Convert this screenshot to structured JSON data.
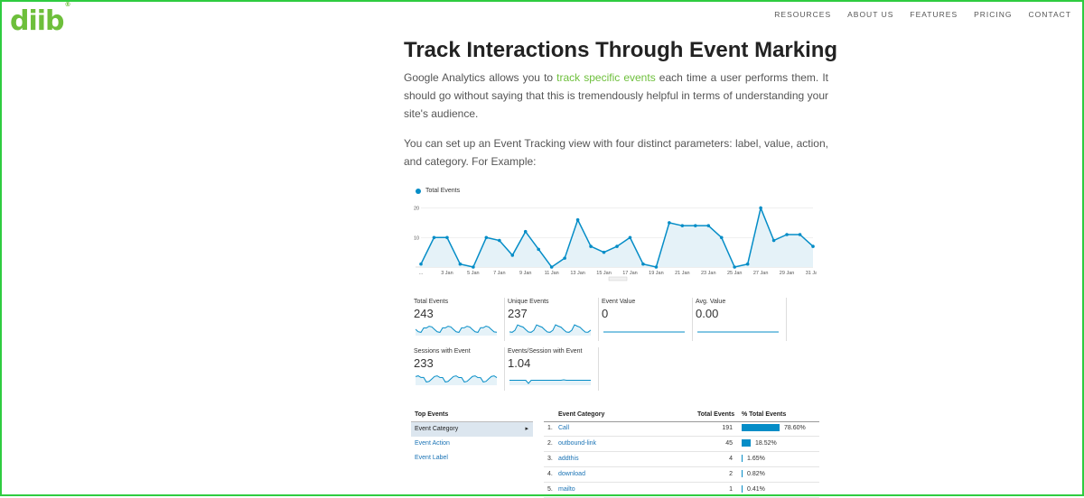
{
  "logo": {
    "text": "diib",
    "mark": "®"
  },
  "nav": {
    "items": [
      "RESOURCES",
      "ABOUT US",
      "FEATURES",
      "PRICING",
      "CONTACT"
    ]
  },
  "article": {
    "heading": "Track Interactions Through Event Marking",
    "p1_before": "Google Analytics allows you to ",
    "p1_link": "track specific events",
    "p1_after": " each time a user performs them. It should go without saying that this is tremendously helpful in terms of understanding your site's audience.",
    "p2": "You can set up an Event Tracking view with four distinct parameters: label, value, action, and category. For Example:"
  },
  "screenshot": {
    "legend": "Total Events",
    "chart_data": {
      "type": "area",
      "title": "Total Events",
      "series": [
        {
          "name": "Total Events",
          "values": [
            1,
            10,
            10,
            1,
            0,
            10,
            9,
            4,
            12,
            6,
            0,
            3,
            16,
            7,
            5,
            7,
            10,
            1,
            0,
            15,
            14,
            14,
            14,
            10,
            0,
            1,
            20,
            9,
            11,
            11,
            7
          ]
        }
      ],
      "y_ticks": [
        10,
        20
      ],
      "ylim": [
        0,
        22
      ],
      "x_tick_labels": [
        "...",
        "3 Jan",
        "5 Jan",
        "7 Jan",
        "9 Jan",
        "11 Jan",
        "13 Jan",
        "15 Jan",
        "17 Jan",
        "19 Jan",
        "21 Jan",
        "23 Jan",
        "25 Jan",
        "27 Jan",
        "29 Jan",
        "31 Jan"
      ],
      "color": "#058dc7"
    },
    "metrics": [
      {
        "label": "Total Events",
        "value": "243"
      },
      {
        "label": "Unique Events",
        "value": "237"
      },
      {
        "label": "Event Value",
        "value": "0"
      },
      {
        "label": "Avg. Value",
        "value": "0.00"
      },
      {
        "label": "Sessions with Event",
        "value": "233"
      },
      {
        "label": "Events/Session with Event",
        "value": "1.04"
      }
    ],
    "top_events": {
      "header": "Top Events",
      "items": [
        "Event Category",
        "Event Action",
        "Event Label"
      ],
      "active_marker": "▸"
    },
    "table": {
      "headers": {
        "category": "Event Category",
        "total": "Total Events",
        "pct": "% Total Events"
      },
      "rows": [
        {
          "n": "1.",
          "category": "Call",
          "total": "191",
          "pct": "78.60%",
          "frac": 0.786
        },
        {
          "n": "2.",
          "category": "outbound-link",
          "total": "45",
          "pct": "18.52%",
          "frac": 0.1852
        },
        {
          "n": "3.",
          "category": "addthis",
          "total": "4",
          "pct": "1.65%",
          "frac": 0.0165
        },
        {
          "n": "4.",
          "category": "download",
          "total": "2",
          "pct": "0.82%",
          "frac": 0.0082
        },
        {
          "n": "5.",
          "category": "mailto",
          "total": "1",
          "pct": "0.41%",
          "frac": 0.0041
        }
      ]
    }
  }
}
